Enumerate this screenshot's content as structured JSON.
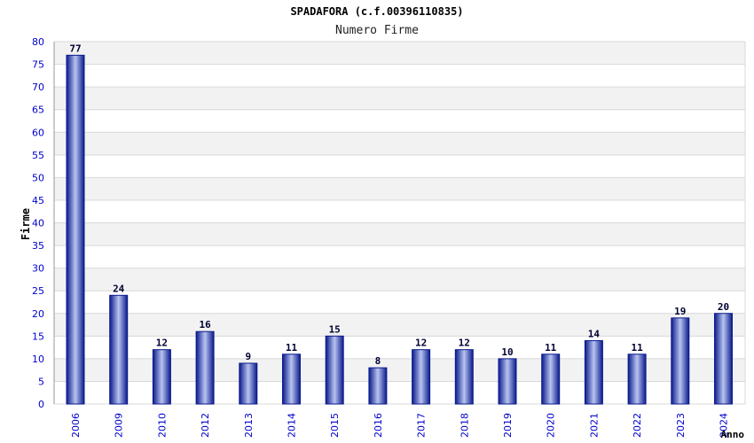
{
  "chart_data": {
    "type": "bar",
    "title": "SPADAFORA (c.f.00396110835)",
    "subtitle": "Numero Firme",
    "xlabel": "Anno",
    "ylabel": "Firme",
    "ylim": [
      0,
      80
    ],
    "ytick_step": 5,
    "grid": true,
    "categories": [
      "2006",
      "2009",
      "2010",
      "2012",
      "2013",
      "2014",
      "2015",
      "2016",
      "2017",
      "2018",
      "2019",
      "2020",
      "2021",
      "2022",
      "2023",
      "2024"
    ],
    "values": [
      77,
      24,
      12,
      16,
      9,
      11,
      15,
      8,
      12,
      12,
      10,
      11,
      14,
      11,
      19,
      20
    ],
    "colors": {
      "bar_dark": "#0a1a8c",
      "bar_light": "#b8c4f0",
      "tick_label": "#0000cc",
      "data_label": "#000033",
      "band_gray": "#f2f2f2",
      "grid": "#d8d8d8"
    }
  }
}
